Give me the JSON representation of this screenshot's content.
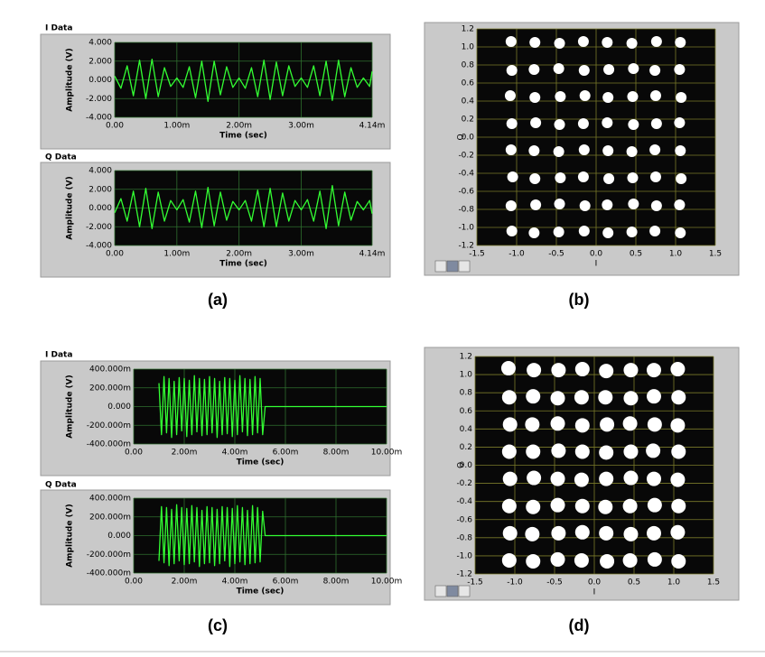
{
  "captions": [
    "(a)",
    "(b)",
    "(c)",
    "(d)"
  ],
  "chart_data": [
    {
      "type": "line",
      "title": "I Data",
      "xlabel": "Time (sec)",
      "ylabel": "Amplitude (V)",
      "color": "#33ff33",
      "grid": true,
      "xlim": [
        0,
        0.00414
      ],
      "xticks": [
        {
          "value": 0,
          "label": "0.00"
        },
        {
          "value": 0.001,
          "label": "1.00m"
        },
        {
          "value": 0.002,
          "label": "2.00m"
        },
        {
          "value": 0.003,
          "label": "3.00m"
        },
        {
          "value": 0.00414,
          "label": "4.14m"
        }
      ],
      "ylim": [
        -4,
        4
      ],
      "yticks": [
        {
          "value": 4,
          "label": "4.000"
        },
        {
          "value": 2,
          "label": "2.000"
        },
        {
          "value": 0,
          "label": "0.000"
        },
        {
          "value": -2,
          "label": "-2.000"
        },
        {
          "value": -4,
          "label": "-4.000"
        }
      ],
      "x": [
        0,
        0.0001,
        0.0002,
        0.0003,
        0.0004,
        0.0005,
        0.0006,
        0.0007,
        0.0008,
        0.0009,
        0.001,
        0.0011,
        0.0012,
        0.0013,
        0.0014,
        0.0015,
        0.0016,
        0.0017,
        0.0018,
        0.0019,
        0.002,
        0.0021,
        0.0022,
        0.0023,
        0.0024,
        0.0025,
        0.0026,
        0.0027,
        0.0028,
        0.0029,
        0.003,
        0.0031,
        0.0032,
        0.0033,
        0.0034,
        0.0035,
        0.0036,
        0.0037,
        0.0038,
        0.0039,
        0.004,
        0.0041,
        0.00414
      ],
      "values": [
        0.4,
        -0.9,
        1.5,
        -1.7,
        2.1,
        -2.0,
        2.2,
        -1.8,
        1.3,
        -0.7,
        0.2,
        -0.8,
        1.4,
        -1.9,
        2.0,
        -2.3,
        2.0,
        -1.6,
        1.4,
        -0.8,
        0.2,
        -0.9,
        1.3,
        -1.8,
        2.1,
        -2.1,
        1.9,
        -1.7,
        1.5,
        -0.7,
        0.2,
        -0.8,
        1.5,
        -1.7,
        2.0,
        -2.2,
        2.1,
        -1.8,
        1.3,
        -0.8,
        0.2,
        -0.7,
        0.9
      ]
    },
    {
      "type": "line",
      "title": "Q Data",
      "xlabel": "Time (sec)",
      "ylabel": "Amplitude (V)",
      "color": "#33ff33",
      "grid": true,
      "xlim": [
        0,
        0.00414
      ],
      "xticks": [
        {
          "value": 0,
          "label": "0.00"
        },
        {
          "value": 0.001,
          "label": "1.00m"
        },
        {
          "value": 0.002,
          "label": "2.00m"
        },
        {
          "value": 0.003,
          "label": "3.00m"
        },
        {
          "value": 0.00414,
          "label": "4.14m"
        }
      ],
      "ylim": [
        -4,
        4
      ],
      "yticks": [
        {
          "value": 4,
          "label": "4.000"
        },
        {
          "value": 2,
          "label": "2.000"
        },
        {
          "value": 0,
          "label": "0.000"
        },
        {
          "value": -2,
          "label": "-2.000"
        },
        {
          "value": -4,
          "label": "-4.000"
        }
      ],
      "x": [
        0,
        0.0001,
        0.0002,
        0.0003,
        0.0004,
        0.0005,
        0.0006,
        0.0007,
        0.0008,
        0.0009,
        0.001,
        0.0011,
        0.0012,
        0.0013,
        0.0014,
        0.0015,
        0.0016,
        0.0017,
        0.0018,
        0.0019,
        0.002,
        0.0021,
        0.0022,
        0.0023,
        0.0024,
        0.0025,
        0.0026,
        0.0027,
        0.0028,
        0.0029,
        0.003,
        0.0031,
        0.0032,
        0.0033,
        0.0034,
        0.0035,
        0.0036,
        0.0037,
        0.0038,
        0.0039,
        0.004,
        0.0041,
        0.00414
      ],
      "values": [
        -0.5,
        1.0,
        -1.4,
        1.8,
        -2.0,
        2.1,
        -2.2,
        1.7,
        -1.4,
        0.8,
        -0.2,
        0.9,
        -1.5,
        1.8,
        -2.1,
        2.2,
        -1.9,
        1.7,
        -1.3,
        0.7,
        -0.2,
        0.8,
        -1.4,
        1.9,
        -2.0,
        2.1,
        -2.0,
        1.6,
        -1.4,
        0.8,
        -0.2,
        0.9,
        -1.4,
        1.8,
        -2.2,
        2.4,
        -1.9,
        1.7,
        -1.3,
        0.7,
        -0.2,
        0.8,
        -0.6
      ]
    },
    {
      "type": "scatter",
      "xlabel": "I",
      "ylabel": "Q",
      "color": "#ffffff",
      "grid": true,
      "xlim": [
        -1.5,
        1.5
      ],
      "xticks": [
        -1.5,
        {
          "value": -1,
          "label": "-1.0"
        },
        -0.5,
        {
          "value": 0,
          "label": "0.0"
        },
        0.5,
        {
          "value": 1,
          "label": "1.0"
        },
        1.5
      ],
      "ylim": [
        -1.2,
        1.2
      ],
      "yticks": [
        1.2,
        {
          "value": 1,
          "label": "1.0"
        },
        0.8,
        0.6,
        0.4,
        0.2,
        {
          "value": 0,
          "label": "0.0"
        },
        -0.2,
        -0.4,
        -0.6,
        -0.8,
        {
          "value": -1,
          "label": "-1.0"
        },
        -1.2
      ],
      "x": [
        -1.07,
        -0.77,
        -0.46,
        -0.16,
        0.14,
        0.45,
        0.76,
        1.06,
        -1.06,
        -0.78,
        -0.47,
        -0.15,
        0.16,
        0.47,
        0.74,
        1.05,
        -1.08,
        -0.77,
        -0.45,
        -0.14,
        0.15,
        0.46,
        0.75,
        1.07,
        -1.06,
        -0.76,
        -0.46,
        -0.16,
        0.14,
        0.47,
        0.76,
        1.05,
        -1.07,
        -0.78,
        -0.47,
        -0.15,
        0.15,
        0.45,
        0.74,
        1.06,
        -1.05,
        -0.77,
        -0.45,
        -0.16,
        0.16,
        0.46,
        0.75,
        1.07,
        -1.07,
        -0.76,
        -0.46,
        -0.14,
        0.14,
        0.47,
        0.76,
        1.05,
        -1.06,
        -0.78,
        -0.47,
        -0.15,
        0.15,
        0.45,
        0.74,
        1.06
      ],
      "values": [
        1.06,
        1.05,
        1.04,
        1.06,
        1.05,
        1.04,
        1.06,
        1.05,
        0.74,
        0.75,
        0.76,
        0.74,
        0.75,
        0.76,
        0.74,
        0.75,
        0.46,
        0.44,
        0.45,
        0.46,
        0.44,
        0.45,
        0.46,
        0.44,
        0.15,
        0.16,
        0.14,
        0.15,
        0.16,
        0.14,
        0.15,
        0.16,
        -0.14,
        -0.15,
        -0.16,
        -0.14,
        -0.15,
        -0.16,
        -0.14,
        -0.15,
        -0.44,
        -0.46,
        -0.45,
        -0.44,
        -0.46,
        -0.45,
        -0.44,
        -0.46,
        -0.76,
        -0.75,
        -0.74,
        -0.76,
        -0.75,
        -0.74,
        -0.76,
        -0.75,
        -1.04,
        -1.06,
        -1.05,
        -1.04,
        -1.06,
        -1.05,
        -1.04,
        -1.06
      ]
    },
    {
      "type": "line",
      "title": "I Data",
      "xlabel": "Time (sec)",
      "ylabel": "Amplitude (V)",
      "color": "#33ff33",
      "grid": true,
      "xlim": [
        0,
        0.01
      ],
      "xticks": [
        {
          "value": 0,
          "label": "0.00"
        },
        {
          "value": 0.002,
          "label": "2.00m"
        },
        {
          "value": 0.004,
          "label": "4.00m"
        },
        {
          "value": 0.006,
          "label": "6.00m"
        },
        {
          "value": 0.008,
          "label": "8.00m"
        },
        {
          "value": 0.01,
          "label": "10.00m"
        }
      ],
      "ylim": [
        -0.4,
        0.4
      ],
      "yticks": [
        {
          "value": 0.4,
          "label": "400.000m"
        },
        {
          "value": 0.2,
          "label": "200.000m"
        },
        {
          "value": 0,
          "label": "0.000"
        },
        {
          "value": -0.2,
          "label": "-200.000m"
        },
        {
          "value": -0.4,
          "label": "-400.000m"
        }
      ],
      "x": [
        0.001,
        0.0011,
        0.0012,
        0.0013,
        0.0014,
        0.0015,
        0.0016,
        0.0017,
        0.0018,
        0.0019,
        0.002,
        0.0021,
        0.0022,
        0.0023,
        0.0024,
        0.0025,
        0.0026,
        0.0027,
        0.0028,
        0.0029,
        0.003,
        0.0031,
        0.0032,
        0.0033,
        0.0034,
        0.0035,
        0.0036,
        0.0037,
        0.0038,
        0.0039,
        0.004,
        0.0041,
        0.0042,
        0.0043,
        0.0044,
        0.0045,
        0.0046,
        0.0047,
        0.0048,
        0.0049,
        0.005,
        0.0051,
        0.0052,
        0.01
      ],
      "values": [
        0.25,
        -0.3,
        0.32,
        -0.28,
        0.3,
        -0.33,
        0.27,
        -0.3,
        0.31,
        -0.26,
        0.3,
        -0.32,
        0.28,
        -0.3,
        0.33,
        -0.27,
        0.3,
        -0.31,
        0.29,
        -0.3,
        0.32,
        -0.28,
        0.3,
        -0.33,
        0.27,
        -0.3,
        0.31,
        -0.29,
        0.3,
        -0.32,
        0.28,
        -0.3,
        0.33,
        -0.27,
        0.3,
        -0.31,
        0.29,
        -0.3,
        0.32,
        -0.28,
        0.3,
        -0.3,
        0,
        0
      ]
    },
    {
      "type": "line",
      "title": "Q Data",
      "xlabel": "Time (sec)",
      "ylabel": "Amplitude (V)",
      "color": "#33ff33",
      "grid": true,
      "xlim": [
        0,
        0.01
      ],
      "xticks": [
        {
          "value": 0,
          "label": "0.00"
        },
        {
          "value": 0.002,
          "label": "2.00m"
        },
        {
          "value": 0.004,
          "label": "4.00m"
        },
        {
          "value": 0.006,
          "label": "6.00m"
        },
        {
          "value": 0.008,
          "label": "8.00m"
        },
        {
          "value": 0.01,
          "label": "10.00m"
        }
      ],
      "ylim": [
        -0.4,
        0.4
      ],
      "yticks": [
        {
          "value": 0.4,
          "label": "400.000m"
        },
        {
          "value": 0.2,
          "label": "200.000m"
        },
        {
          "value": 0,
          "label": "0.000"
        },
        {
          "value": -0.2,
          "label": "-200.000m"
        },
        {
          "value": -0.4,
          "label": "-400.000m"
        }
      ],
      "x": [
        0.001,
        0.0011,
        0.0012,
        0.0013,
        0.0014,
        0.0015,
        0.0016,
        0.0017,
        0.0018,
        0.0019,
        0.002,
        0.0021,
        0.0022,
        0.0023,
        0.0024,
        0.0025,
        0.0026,
        0.0027,
        0.0028,
        0.0029,
        0.003,
        0.0031,
        0.0032,
        0.0033,
        0.0034,
        0.0035,
        0.0036,
        0.0037,
        0.0038,
        0.0039,
        0.004,
        0.0041,
        0.0042,
        0.0043,
        0.0044,
        0.0045,
        0.0046,
        0.0047,
        0.0048,
        0.0049,
        0.005,
        0.0051,
        0.0052,
        0.01
      ],
      "values": [
        -0.27,
        0.31,
        -0.29,
        0.3,
        -0.32,
        0.28,
        -0.3,
        0.33,
        -0.27,
        0.3,
        -0.31,
        0.29,
        -0.3,
        0.32,
        -0.28,
        0.3,
        -0.33,
        0.27,
        -0.3,
        0.31,
        -0.29,
        0.3,
        -0.32,
        0.28,
        -0.3,
        0.31,
        -0.27,
        0.3,
        -0.33,
        0.29,
        -0.3,
        0.32,
        -0.28,
        0.3,
        -0.31,
        0.27,
        -0.3,
        0.32,
        -0.29,
        0.3,
        -0.28,
        0.26,
        0,
        0
      ]
    },
    {
      "type": "scatter",
      "xlabel": "I",
      "ylabel": "Q",
      "color": "#ffffff",
      "grid": true,
      "xlim": [
        -1.5,
        1.5
      ],
      "xticks": [
        -1.5,
        {
          "value": -1,
          "label": "-1.0"
        },
        -0.5,
        {
          "value": 0,
          "label": "0.0"
        },
        0.5,
        {
          "value": 1,
          "label": "1.0"
        },
        1.5
      ],
      "ylim": [
        -1.2,
        1.2
      ],
      "yticks": [
        1.2,
        {
          "value": 1,
          "label": "1.0"
        },
        0.8,
        0.6,
        0.4,
        0.2,
        {
          "value": 0,
          "label": "0.0"
        },
        -0.2,
        -0.4,
        -0.6,
        -0.8,
        {
          "value": -1,
          "label": "-1.0"
        },
        -1.2
      ],
      "x": [
        -1.08,
        -0.76,
        -0.45,
        -0.15,
        0.15,
        0.46,
        0.75,
        1.05,
        -1.07,
        -0.77,
        -0.46,
        -0.16,
        0.14,
        0.46,
        0.75,
        1.06,
        -1.06,
        -0.78,
        -0.46,
        -0.15,
        0.16,
        0.45,
        0.76,
        1.05,
        -1.07,
        -0.77,
        -0.45,
        -0.15,
        0.15,
        0.46,
        0.74,
        1.06,
        -1.06,
        -0.76,
        -0.46,
        -0.16,
        0.15,
        0.46,
        0.75,
        1.05,
        -1.07,
        -0.77,
        -0.46,
        -0.15,
        0.14,
        0.45,
        0.76,
        1.06,
        -1.06,
        -0.78,
        -0.45,
        -0.15,
        0.15,
        0.46,
        0.75,
        1.05,
        -1.07,
        -0.77,
        -0.46,
        -0.16,
        0.16,
        0.45,
        0.76,
        1.06
      ],
      "values": [
        1.07,
        1.05,
        1.05,
        1.06,
        1.04,
        1.05,
        1.05,
        1.06,
        0.75,
        0.76,
        0.74,
        0.75,
        0.75,
        0.74,
        0.76,
        0.75,
        0.45,
        0.45,
        0.46,
        0.44,
        0.45,
        0.46,
        0.45,
        0.44,
        0.15,
        0.15,
        0.16,
        0.15,
        0.14,
        0.15,
        0.16,
        0.15,
        -0.15,
        -0.14,
        -0.15,
        -0.16,
        -0.15,
        -0.14,
        -0.15,
        -0.16,
        -0.45,
        -0.46,
        -0.44,
        -0.45,
        -0.46,
        -0.45,
        -0.44,
        -0.45,
        -0.75,
        -0.76,
        -0.75,
        -0.74,
        -0.75,
        -0.76,
        -0.75,
        -0.74,
        -1.05,
        -1.06,
        -1.04,
        -1.05,
        -1.06,
        -1.05,
        -1.04,
        -1.06
      ]
    }
  ]
}
